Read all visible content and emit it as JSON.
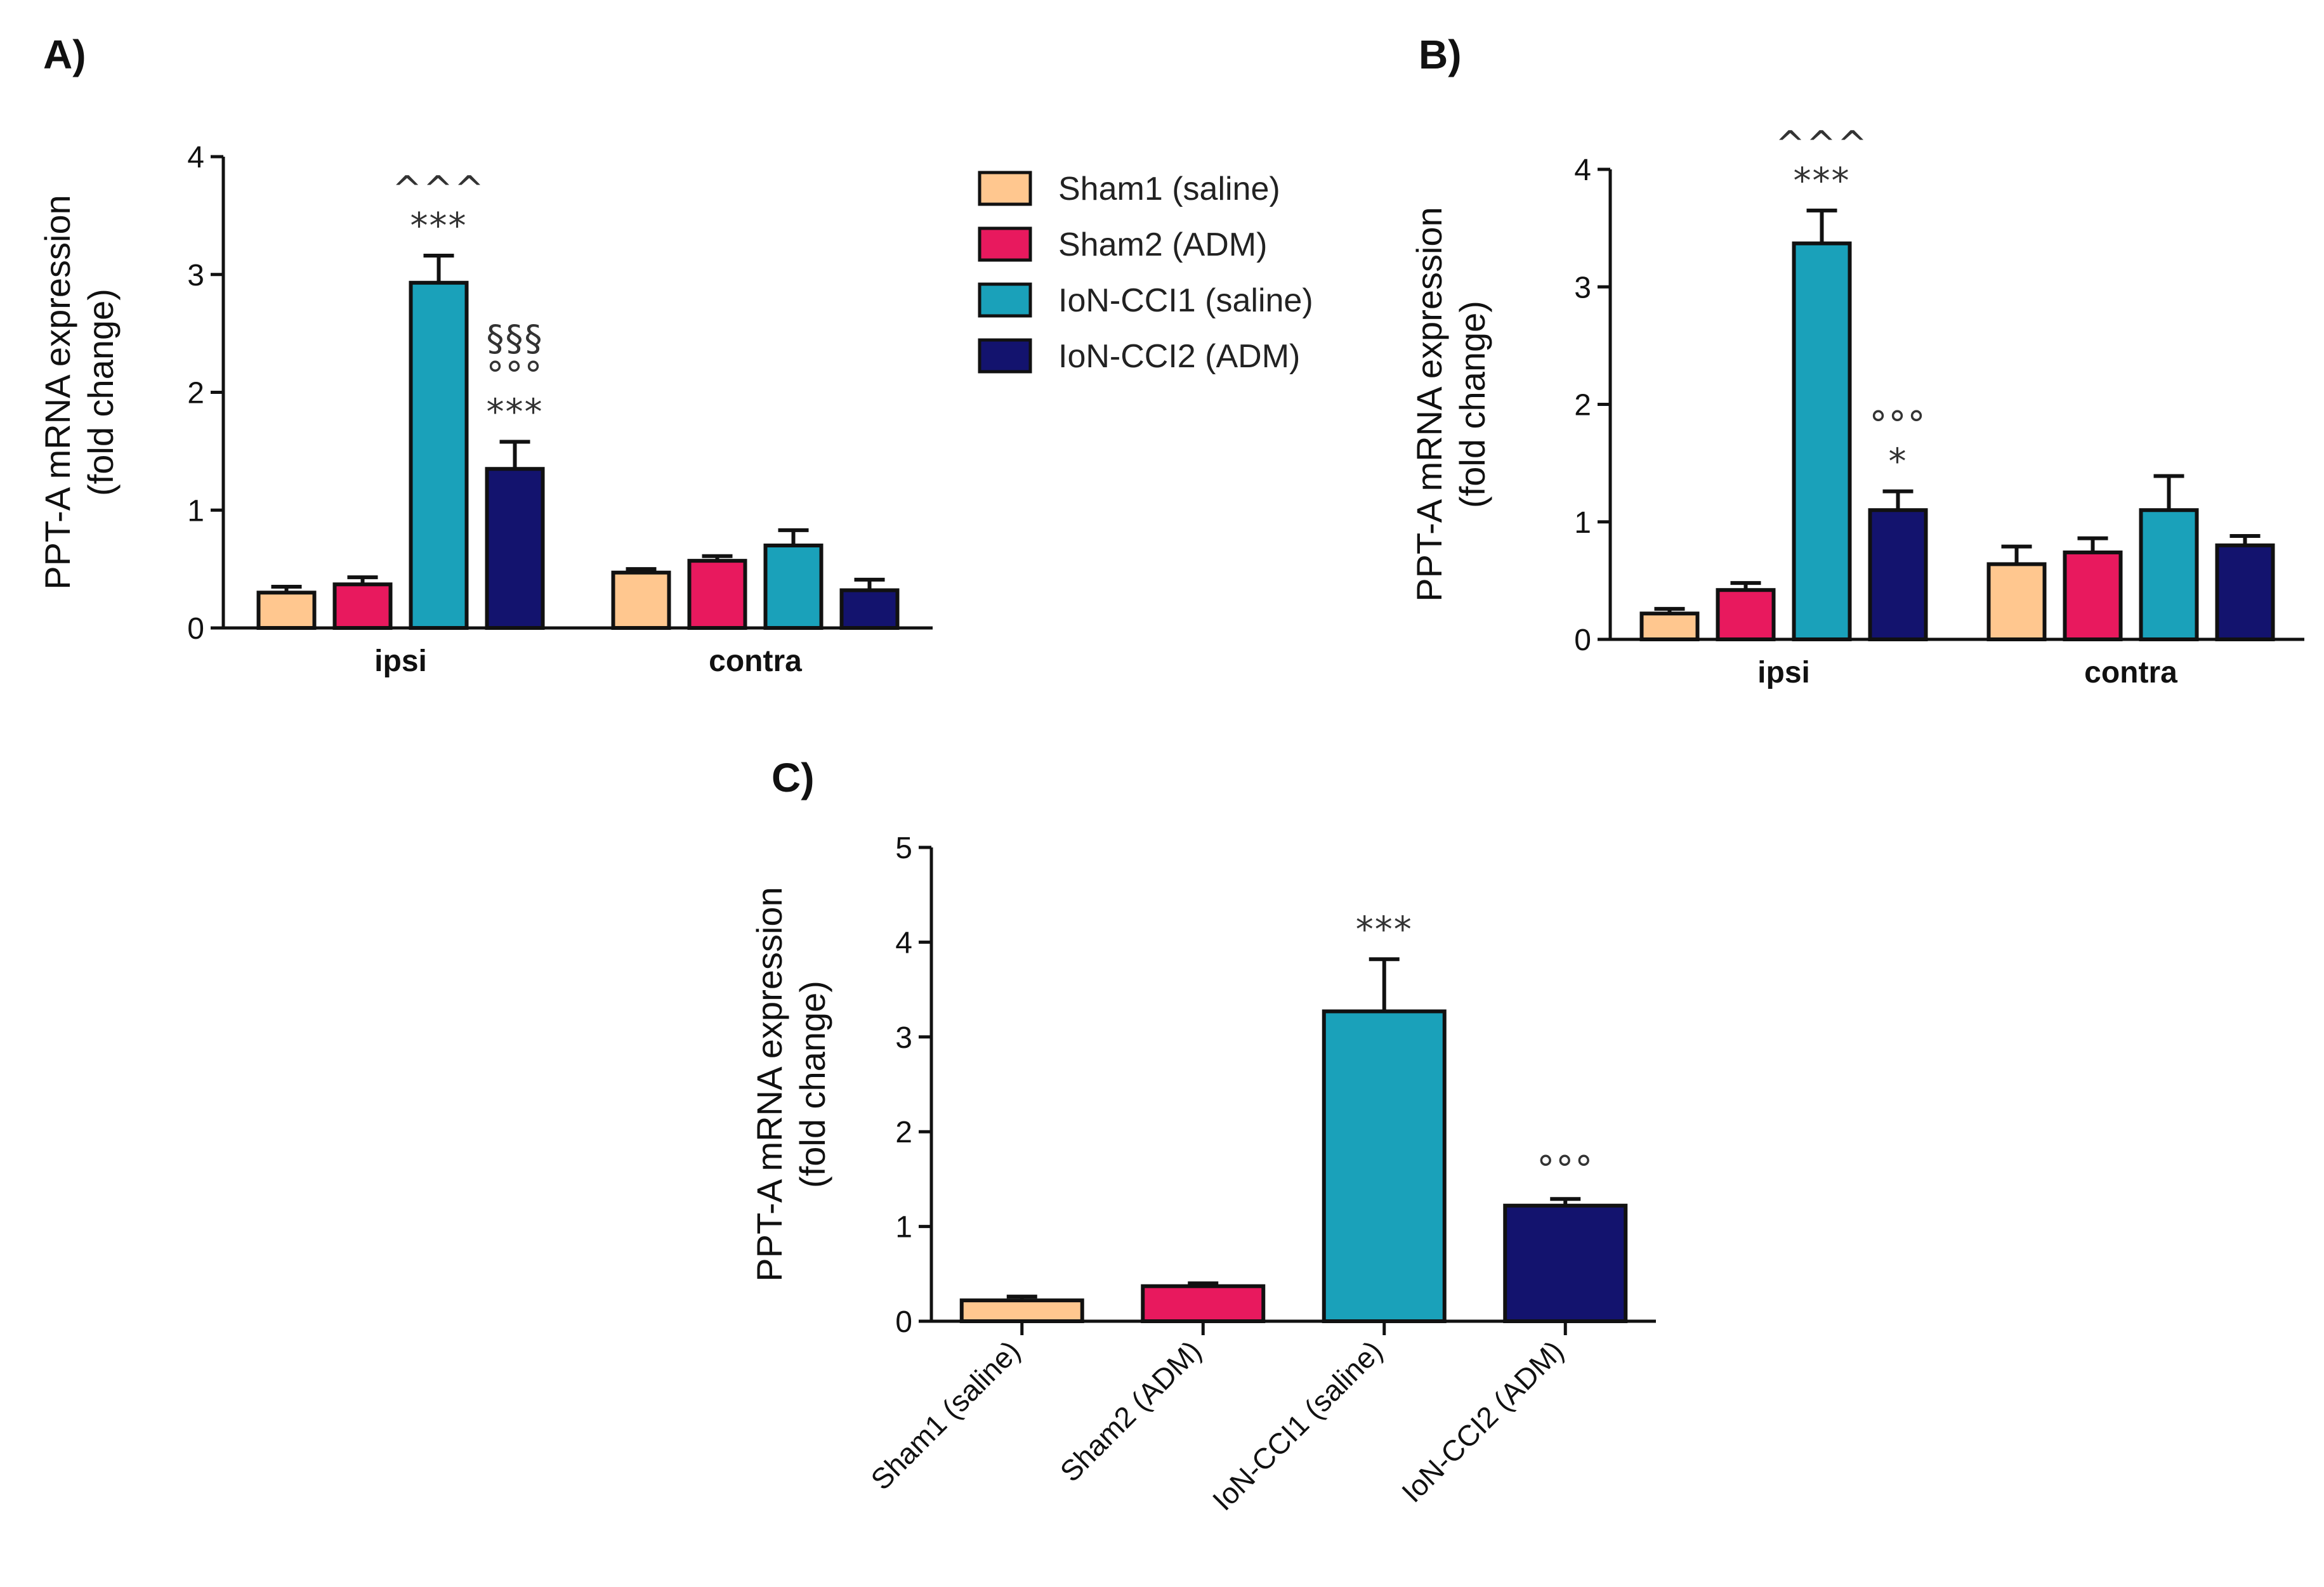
{
  "colors": {
    "sham1": "#FFC78F",
    "sham2": "#E8195E",
    "ion_cci1": "#1AA1BA",
    "ion_cci2": "#13136E",
    "axis": "#111111"
  },
  "legend": {
    "items": [
      {
        "label": "Sham1 (saline)",
        "color_key": "sham1"
      },
      {
        "label": "Sham2 (ADM)",
        "color_key": "sham2"
      },
      {
        "label": "IoN-CCI1 (saline)",
        "color_key": "ion_cci1"
      },
      {
        "label": "IoN-CCI2 (ADM)",
        "color_key": "ion_cci2"
      }
    ]
  },
  "chart_data": [
    {
      "panel": "A)",
      "type": "bar",
      "ylabel_line1": "PPT-A mRNA expression",
      "ylabel_line2": "(fold change)",
      "ylim": [
        0,
        4
      ],
      "yticks": [
        0,
        1,
        2,
        3,
        4
      ],
      "categories": [
        "ipsi",
        "contra"
      ],
      "series": [
        {
          "name": "Sham1 (saline)",
          "color_key": "sham1",
          "values": [
            0.3,
            0.47
          ],
          "errors": [
            0.05,
            0.03
          ]
        },
        {
          "name": "Sham2 (ADM)",
          "color_key": "sham2",
          "values": [
            0.37,
            0.57
          ],
          "errors": [
            0.06,
            0.04
          ]
        },
        {
          "name": "IoN-CCI1 (saline)",
          "color_key": "ion_cci1",
          "values": [
            2.93,
            0.7
          ],
          "errors": [
            0.23,
            0.13
          ]
        },
        {
          "name": "IoN-CCI2 (ADM)",
          "color_key": "ion_cci2",
          "values": [
            1.35,
            0.32
          ],
          "errors": [
            0.23,
            0.09
          ]
        }
      ],
      "annotations": [
        {
          "category": 0,
          "series": 2,
          "lines": [
            "^^^",
            "***"
          ]
        },
        {
          "category": 0,
          "series": 3,
          "lines": [
            "§§§",
            "°°°",
            "***"
          ]
        }
      ]
    },
    {
      "panel": "B)",
      "type": "bar",
      "ylabel_line1": "PPT-A mRNA expression",
      "ylabel_line2": "(fold change)",
      "ylim": [
        0,
        4
      ],
      "yticks": [
        0,
        1,
        2,
        3,
        4
      ],
      "categories": [
        "ipsi",
        "contra"
      ],
      "series": [
        {
          "name": "Sham1 (saline)",
          "color_key": "sham1",
          "values": [
            0.22,
            0.64
          ],
          "errors": [
            0.04,
            0.15
          ]
        },
        {
          "name": "Sham2 (ADM)",
          "color_key": "sham2",
          "values": [
            0.42,
            0.74
          ],
          "errors": [
            0.06,
            0.12
          ]
        },
        {
          "name": "IoN-CCI1 (saline)",
          "color_key": "ion_cci1",
          "values": [
            3.37,
            1.1
          ],
          "errors": [
            0.28,
            0.29
          ]
        },
        {
          "name": "IoN-CCI2 (ADM)",
          "color_key": "ion_cci2",
          "values": [
            1.1,
            0.8
          ],
          "errors": [
            0.16,
            0.08
          ]
        }
      ],
      "annotations": [
        {
          "category": 0,
          "series": 2,
          "lines": [
            "^^^",
            "***"
          ]
        },
        {
          "category": 0,
          "series": 3,
          "lines": [
            "°°°",
            "*"
          ]
        }
      ]
    },
    {
      "panel": "C)",
      "type": "bar",
      "ylabel_line1": "PPT-A mRNA expression",
      "ylabel_line2": "(fold change)",
      "ylim": [
        0,
        5
      ],
      "yticks": [
        0,
        1,
        2,
        3,
        4,
        5
      ],
      "categories": [
        "Sham1 (saline)",
        "Sham2 (ADM)",
        "IoN-CCI1 (saline)",
        "IoN-CCI2 (ADM)"
      ],
      "color_keys": [
        "sham1",
        "sham2",
        "ion_cci1",
        "ion_cci2"
      ],
      "values": [
        0.22,
        0.37,
        3.27,
        1.22
      ],
      "errors": [
        0.04,
        0.03,
        0.55,
        0.07
      ],
      "annotations": [
        {
          "index": 2,
          "lines": [
            "***"
          ]
        },
        {
          "index": 3,
          "lines": [
            "°°°"
          ]
        }
      ]
    }
  ]
}
